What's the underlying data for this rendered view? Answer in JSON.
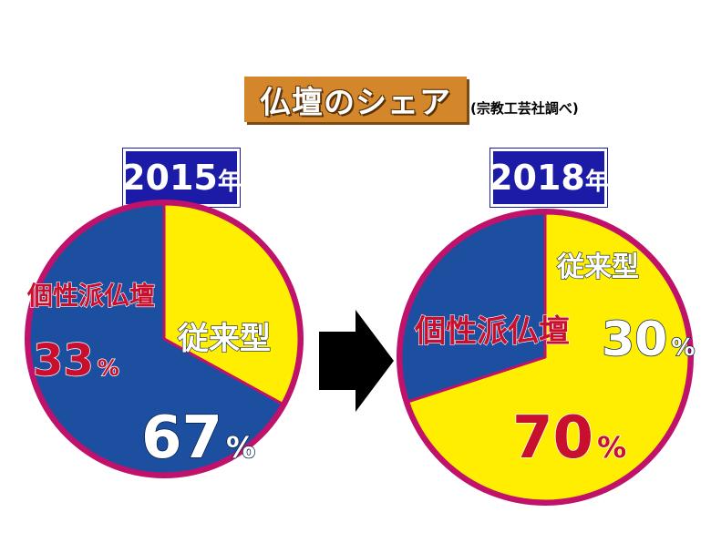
{
  "title": "仏壇のシェア",
  "source": "(宗教工芸社調べ)",
  "colors": {
    "blue": "#1c4fa0",
    "yellow": "#ffee00",
    "label_red": "#c8102e",
    "border": "#c0126a",
    "title_bg": "#d4862a",
    "year_bg": "#1b1ba8"
  },
  "icons": {
    "arrow": "right-arrow-icon"
  },
  "chart_data": [
    {
      "type": "pie",
      "year": "2015",
      "year_suffix": "年",
      "slices": [
        {
          "label": "個性派仏壇",
          "value": 33,
          "value_text": "33",
          "unit": "%",
          "color": "#ffee00"
        },
        {
          "label": "従来型",
          "value": 67,
          "value_text": "67",
          "unit": "%",
          "color": "#1c4fa0"
        }
      ]
    },
    {
      "type": "pie",
      "year": "2018",
      "year_suffix": "年",
      "slices": [
        {
          "label": "個性派仏壇",
          "value": 70,
          "value_text": "70",
          "unit": "%",
          "color": "#ffee00"
        },
        {
          "label": "従来型",
          "value": 30,
          "value_text": "30",
          "unit": "%",
          "color": "#1c4fa0"
        }
      ]
    }
  ]
}
